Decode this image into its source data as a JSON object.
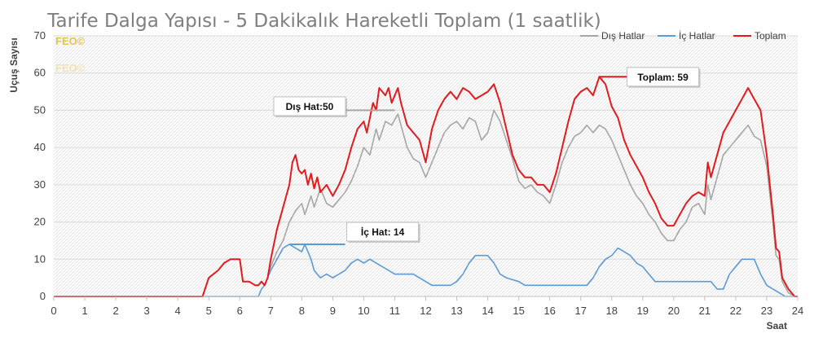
{
  "chart_data": {
    "type": "line",
    "title": "Tarife Dalga Yapısı - 5 Dakikalık Hareketli Toplam (1 saatlik)",
    "xlabel": "Saat",
    "ylabel": "Uçuş Sayısı",
    "xlim": [
      0,
      24
    ],
    "ylim": [
      0,
      70
    ],
    "x_ticks": [
      0,
      1,
      2,
      3,
      4,
      5,
      6,
      7,
      8,
      9,
      10,
      11,
      12,
      13,
      14,
      15,
      16,
      17,
      18,
      19,
      20,
      21,
      22,
      23,
      24
    ],
    "y_ticks": [
      0,
      10,
      20,
      30,
      40,
      50,
      60,
      70
    ],
    "grid": true,
    "legend_position": "top-right",
    "series": [
      {
        "name": "Dış Hatlar",
        "color": "#a6a6a6",
        "points": [
          [
            0,
            0
          ],
          [
            4.8,
            0
          ],
          [
            5.0,
            5
          ],
          [
            5.3,
            7
          ],
          [
            5.5,
            9
          ],
          [
            5.7,
            10
          ],
          [
            6.0,
            10
          ],
          [
            6.1,
            4
          ],
          [
            6.3,
            4
          ],
          [
            6.5,
            3
          ],
          [
            6.6,
            3
          ],
          [
            6.7,
            4
          ],
          [
            6.8,
            3
          ],
          [
            6.9,
            5
          ],
          [
            7.0,
            8
          ],
          [
            7.2,
            12
          ],
          [
            7.4,
            15
          ],
          [
            7.6,
            20
          ],
          [
            7.8,
            23
          ],
          [
            8.0,
            25
          ],
          [
            8.1,
            22
          ],
          [
            8.3,
            27
          ],
          [
            8.4,
            24
          ],
          [
            8.6,
            29
          ],
          [
            8.8,
            25
          ],
          [
            9.0,
            24
          ],
          [
            9.2,
            26
          ],
          [
            9.4,
            28
          ],
          [
            9.6,
            31
          ],
          [
            9.8,
            35
          ],
          [
            10.0,
            40
          ],
          [
            10.2,
            38
          ],
          [
            10.4,
            45
          ],
          [
            10.5,
            42
          ],
          [
            10.7,
            47
          ],
          [
            10.9,
            46
          ],
          [
            11.1,
            49
          ],
          [
            11.2,
            46
          ],
          [
            11.4,
            40
          ],
          [
            11.6,
            37
          ],
          [
            11.8,
            36
          ],
          [
            12.0,
            32
          ],
          [
            12.2,
            36
          ],
          [
            12.4,
            40
          ],
          [
            12.6,
            44
          ],
          [
            12.8,
            46
          ],
          [
            13.0,
            47
          ],
          [
            13.2,
            45
          ],
          [
            13.4,
            48
          ],
          [
            13.6,
            47
          ],
          [
            13.8,
            42
          ],
          [
            14.0,
            44
          ],
          [
            14.2,
            50
          ],
          [
            14.4,
            47
          ],
          [
            14.6,
            42
          ],
          [
            14.8,
            37
          ],
          [
            15.0,
            31
          ],
          [
            15.2,
            29
          ],
          [
            15.4,
            30
          ],
          [
            15.6,
            28
          ],
          [
            15.8,
            27
          ],
          [
            16.0,
            25
          ],
          [
            16.2,
            30
          ],
          [
            16.4,
            36
          ],
          [
            16.6,
            40
          ],
          [
            16.8,
            43
          ],
          [
            17.0,
            44
          ],
          [
            17.2,
            46
          ],
          [
            17.4,
            44
          ],
          [
            17.6,
            46
          ],
          [
            17.8,
            45
          ],
          [
            18.0,
            42
          ],
          [
            18.2,
            38
          ],
          [
            18.4,
            34
          ],
          [
            18.6,
            30
          ],
          [
            18.8,
            27
          ],
          [
            19.0,
            25
          ],
          [
            19.2,
            22
          ],
          [
            19.4,
            20
          ],
          [
            19.6,
            17
          ],
          [
            19.8,
            15
          ],
          [
            20.0,
            15
          ],
          [
            20.2,
            18
          ],
          [
            20.4,
            20
          ],
          [
            20.6,
            24
          ],
          [
            20.8,
            25
          ],
          [
            21.0,
            22
          ],
          [
            21.1,
            30
          ],
          [
            21.2,
            26
          ],
          [
            21.4,
            32
          ],
          [
            21.6,
            38
          ],
          [
            21.8,
            40
          ],
          [
            22.0,
            42
          ],
          [
            22.2,
            44
          ],
          [
            22.4,
            46
          ],
          [
            22.6,
            43
          ],
          [
            22.8,
            42
          ],
          [
            23.0,
            35
          ],
          [
            23.2,
            20
          ],
          [
            23.3,
            11
          ],
          [
            23.4,
            10
          ],
          [
            23.5,
            4
          ],
          [
            23.7,
            1
          ],
          [
            23.9,
            0
          ],
          [
            24.0,
            0
          ]
        ]
      },
      {
        "name": "İç Hatlar",
        "color": "#5b9bd5",
        "points": [
          [
            0,
            0
          ],
          [
            6.6,
            0
          ],
          [
            6.7,
            2
          ],
          [
            6.8,
            3
          ],
          [
            7.0,
            7
          ],
          [
            7.2,
            10
          ],
          [
            7.4,
            13
          ],
          [
            7.6,
            14
          ],
          [
            7.8,
            13
          ],
          [
            8.0,
            12
          ],
          [
            8.1,
            14
          ],
          [
            8.2,
            12
          ],
          [
            8.3,
            10
          ],
          [
            8.4,
            7
          ],
          [
            8.5,
            6
          ],
          [
            8.6,
            5
          ],
          [
            8.8,
            6
          ],
          [
            9.0,
            5
          ],
          [
            9.2,
            6
          ],
          [
            9.4,
            7
          ],
          [
            9.6,
            9
          ],
          [
            9.8,
            10
          ],
          [
            10.0,
            9
          ],
          [
            10.2,
            10
          ],
          [
            10.4,
            9
          ],
          [
            10.6,
            8
          ],
          [
            10.8,
            7
          ],
          [
            11.0,
            6
          ],
          [
            11.2,
            6
          ],
          [
            11.6,
            6
          ],
          [
            12.0,
            4
          ],
          [
            12.2,
            3
          ],
          [
            12.8,
            3
          ],
          [
            13.0,
            4
          ],
          [
            13.2,
            6
          ],
          [
            13.4,
            9
          ],
          [
            13.6,
            11
          ],
          [
            14.0,
            11
          ],
          [
            14.2,
            9
          ],
          [
            14.4,
            6
          ],
          [
            14.6,
            5
          ],
          [
            15.0,
            4
          ],
          [
            15.2,
            3
          ],
          [
            17.2,
            3
          ],
          [
            17.4,
            5
          ],
          [
            17.6,
            8
          ],
          [
            17.8,
            10
          ],
          [
            18.0,
            11
          ],
          [
            18.2,
            13
          ],
          [
            18.4,
            12
          ],
          [
            18.6,
            11
          ],
          [
            18.8,
            9
          ],
          [
            19.0,
            8
          ],
          [
            19.2,
            6
          ],
          [
            19.4,
            4
          ],
          [
            21.2,
            4
          ],
          [
            21.4,
            2
          ],
          [
            21.6,
            2
          ],
          [
            21.8,
            6
          ],
          [
            22.0,
            8
          ],
          [
            22.2,
            10
          ],
          [
            22.6,
            10
          ],
          [
            22.8,
            6
          ],
          [
            23.0,
            3
          ],
          [
            23.2,
            2
          ],
          [
            23.4,
            1
          ],
          [
            23.6,
            0
          ],
          [
            24.0,
            0
          ]
        ]
      },
      {
        "name": "Toplam",
        "color": "#e41a1c",
        "points": [
          [
            0,
            0
          ],
          [
            4.8,
            0
          ],
          [
            5.0,
            5
          ],
          [
            5.3,
            7
          ],
          [
            5.5,
            9
          ],
          [
            5.7,
            10
          ],
          [
            6.0,
            10
          ],
          [
            6.1,
            4
          ],
          [
            6.3,
            4
          ],
          [
            6.5,
            3
          ],
          [
            6.6,
            3
          ],
          [
            6.7,
            4
          ],
          [
            6.8,
            3
          ],
          [
            6.9,
            5
          ],
          [
            7.0,
            10
          ],
          [
            7.2,
            18
          ],
          [
            7.4,
            24
          ],
          [
            7.6,
            30
          ],
          [
            7.7,
            36
          ],
          [
            7.8,
            38
          ],
          [
            7.9,
            34
          ],
          [
            8.0,
            33
          ],
          [
            8.1,
            34
          ],
          [
            8.2,
            30
          ],
          [
            8.3,
            33
          ],
          [
            8.4,
            29
          ],
          [
            8.5,
            32
          ],
          [
            8.6,
            28
          ],
          [
            8.8,
            30
          ],
          [
            9.0,
            27
          ],
          [
            9.2,
            30
          ],
          [
            9.4,
            34
          ],
          [
            9.6,
            40
          ],
          [
            9.8,
            45
          ],
          [
            10.0,
            47
          ],
          [
            10.1,
            44
          ],
          [
            10.2,
            48
          ],
          [
            10.3,
            52
          ],
          [
            10.4,
            50
          ],
          [
            10.5,
            56
          ],
          [
            10.7,
            54
          ],
          [
            10.8,
            56
          ],
          [
            10.9,
            52
          ],
          [
            11.1,
            56
          ],
          [
            11.2,
            52
          ],
          [
            11.4,
            46
          ],
          [
            11.6,
            44
          ],
          [
            11.8,
            42
          ],
          [
            12.0,
            36
          ],
          [
            12.2,
            45
          ],
          [
            12.4,
            50
          ],
          [
            12.6,
            53
          ],
          [
            12.8,
            55
          ],
          [
            13.0,
            53
          ],
          [
            13.2,
            56
          ],
          [
            13.4,
            55
          ],
          [
            13.6,
            53
          ],
          [
            13.8,
            54
          ],
          [
            14.0,
            55
          ],
          [
            14.2,
            57
          ],
          [
            14.4,
            52
          ],
          [
            14.6,
            45
          ],
          [
            14.8,
            38
          ],
          [
            15.0,
            34
          ],
          [
            15.2,
            32
          ],
          [
            15.4,
            32
          ],
          [
            15.6,
            30
          ],
          [
            15.8,
            30
          ],
          [
            16.0,
            28
          ],
          [
            16.2,
            33
          ],
          [
            16.4,
            40
          ],
          [
            16.6,
            47
          ],
          [
            16.8,
            53
          ],
          [
            17.0,
            55
          ],
          [
            17.2,
            56
          ],
          [
            17.4,
            54
          ],
          [
            17.6,
            59
          ],
          [
            17.8,
            57
          ],
          [
            18.0,
            51
          ],
          [
            18.2,
            48
          ],
          [
            18.4,
            42
          ],
          [
            18.6,
            38
          ],
          [
            18.8,
            35
          ],
          [
            19.0,
            32
          ],
          [
            19.2,
            28
          ],
          [
            19.4,
            25
          ],
          [
            19.6,
            21
          ],
          [
            19.8,
            19
          ],
          [
            20.0,
            19
          ],
          [
            20.2,
            22
          ],
          [
            20.4,
            25
          ],
          [
            20.6,
            27
          ],
          [
            20.8,
            28
          ],
          [
            21.0,
            27
          ],
          [
            21.1,
            36
          ],
          [
            21.2,
            32
          ],
          [
            21.4,
            38
          ],
          [
            21.6,
            44
          ],
          [
            21.8,
            47
          ],
          [
            22.0,
            50
          ],
          [
            22.2,
            53
          ],
          [
            22.4,
            56
          ],
          [
            22.6,
            53
          ],
          [
            22.8,
            50
          ],
          [
            23.0,
            38
          ],
          [
            23.2,
            22
          ],
          [
            23.3,
            13
          ],
          [
            23.4,
            12
          ],
          [
            23.5,
            5
          ],
          [
            23.7,
            2
          ],
          [
            23.9,
            0
          ],
          [
            24.0,
            0
          ]
        ]
      }
    ],
    "annotations": [
      {
        "text": "Dış Hat:50",
        "series": "Dış Hatlar",
        "x": 11.0,
        "y": 50,
        "line_from_x": 9.2,
        "line_to_x": 11.0
      },
      {
        "text": "İç Hat: 14",
        "series": "İç Hatlar",
        "x": 7.6,
        "y": 14,
        "line_from_x": 7.6,
        "line_to_x": 9.4
      },
      {
        "text": "Toplam: 59",
        "series": "Toplam",
        "x": 17.6,
        "y": 59,
        "line_from_x": 17.6,
        "line_to_x": 18.6
      }
    ],
    "watermarks": [
      {
        "text": "FEO©",
        "color": "#e8c24a"
      },
      {
        "text": "FEO©",
        "color": "#f3e2b0"
      }
    ]
  }
}
